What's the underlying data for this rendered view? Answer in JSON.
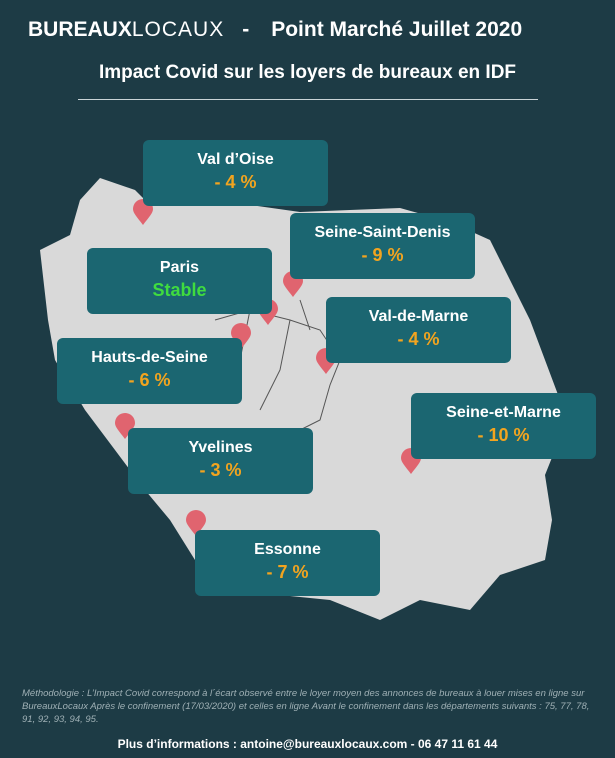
{
  "header": {
    "logo_bold": "BUREAUX",
    "logo_light": "LOCAUX",
    "separator": "-",
    "subtitle": "Point Marché Juillet 2020",
    "title": "Impact Covid sur les loyers de bureaux en IDF"
  },
  "regions": [
    {
      "name": "Val d’Oise",
      "change": "- 4 %"
    },
    {
      "name": "Seine-Saint-Denis",
      "change": "- 9 %"
    },
    {
      "name": "Paris",
      "change": "Stable"
    },
    {
      "name": "Val-de-Marne",
      "change": "- 4 %"
    },
    {
      "name": "Hauts-de-Seine",
      "change": "- 6 %"
    },
    {
      "name": "Seine-et-Marne",
      "change": "- 10 %"
    },
    {
      "name": "Yvelines",
      "change": "- 3 %"
    },
    {
      "name": "Essonne",
      "change": "- 7 %"
    }
  ],
  "footer": {
    "methodology": "Méthodologie : L’Impact Covid correspond à l´écart observé entre le loyer moyen des annonces de bureaux à louer mises en ligne sur BureauxLocaux Après le confinement (17/03/2020) et celles en ligne Avant le confinement dans les départements suivants : 75, 77, 78, 91, 92, 93, 94, 95.",
    "contact": "Plus d’informations : antoine@bureauxlocaux.com - 06 47 11 61 44"
  }
}
